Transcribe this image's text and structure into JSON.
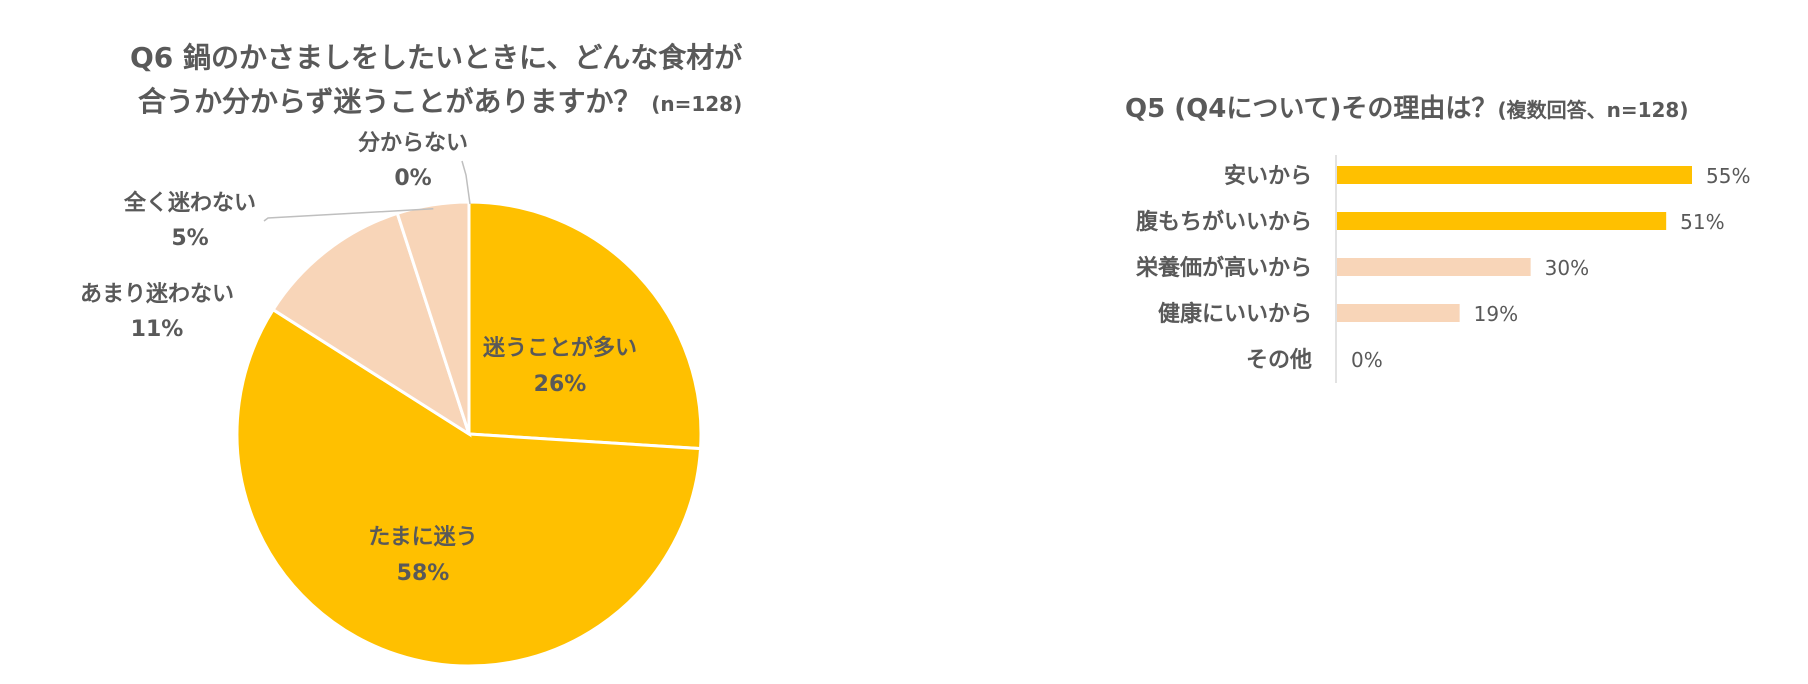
{
  "chart_data": [
    {
      "type": "pie",
      "title_line1": "Q6 鍋のかさましをしたいときに、どんな食材が",
      "title_line2": "合うか分からず迷うことがありますか？",
      "title_note": "(n=128)",
      "slices": [
        {
          "label": "迷うことが多い",
          "value": 26,
          "display": "26%",
          "color": "#FFC000"
        },
        {
          "label": "たまに迷う",
          "value": 58,
          "display": "58%",
          "color": "#FFC000"
        },
        {
          "label": "あまり迷わない",
          "value": 11,
          "display": "11%",
          "color": "#F8D5B8"
        },
        {
          "label": "全く迷わない",
          "value": 5,
          "display": "5%",
          "color": "#F8D5B8"
        },
        {
          "label": "分からない",
          "value": 0,
          "display": "0%",
          "color": "#F8D5B8"
        }
      ]
    },
    {
      "type": "bar",
      "orientation": "horizontal",
      "title": "Q5 (Q4について)その理由は？",
      "title_note": "(複数回答、n=128)",
      "categories": [
        "安いから",
        "腹もちがいいから",
        "栄養価が高いから",
        "健康にいいから",
        "その他"
      ],
      "values": [
        55,
        51,
        30,
        19,
        0
      ],
      "value_labels": [
        "55%",
        "51%",
        "30%",
        "19%",
        "0%"
      ],
      "colors": [
        "#FFC000",
        "#FFC000",
        "#F8D5B8",
        "#F8D5B8",
        "#F8D5B8"
      ],
      "xlim": [
        0,
        55
      ]
    }
  ]
}
